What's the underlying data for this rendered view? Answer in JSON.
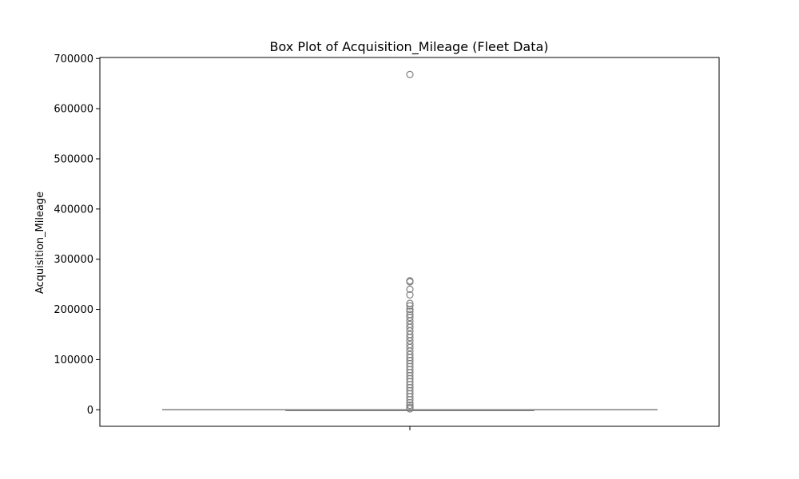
{
  "chart_data": {
    "type": "box",
    "title": "Box Plot of Acquisition_Mileage (Fleet Data)",
    "xlabel": "",
    "ylabel": "Acquisition_Mileage",
    "ylim": [
      -33000,
      702000
    ],
    "yticks": [
      0,
      100000,
      200000,
      300000,
      400000,
      500000,
      600000,
      700000
    ],
    "ytick_labels": [
      "0",
      "100000",
      "200000",
      "300000",
      "400000",
      "500000",
      "600000",
      "700000"
    ],
    "grid": false,
    "legend": "none",
    "colors": {
      "box": "#808080",
      "flier": "#808080",
      "axes": "#000000"
    },
    "box": {
      "whisker_low": 0,
      "q1": 0,
      "median": 0,
      "q3": 0,
      "whisker_high": 0,
      "outliers": [
        668000,
        257000,
        255000,
        240000,
        229000,
        212000,
        207000,
        200000,
        196000,
        190000,
        184000,
        177000,
        170000,
        164000,
        157000,
        150000,
        144000,
        137000,
        130000,
        124000,
        117000,
        110000,
        104000,
        98000,
        92000,
        86000,
        80000,
        74000,
        68000,
        62000,
        56000,
        50000,
        44000,
        38000,
        32000,
        26000,
        20000,
        14000,
        9000,
        5000,
        2000
      ]
    }
  }
}
